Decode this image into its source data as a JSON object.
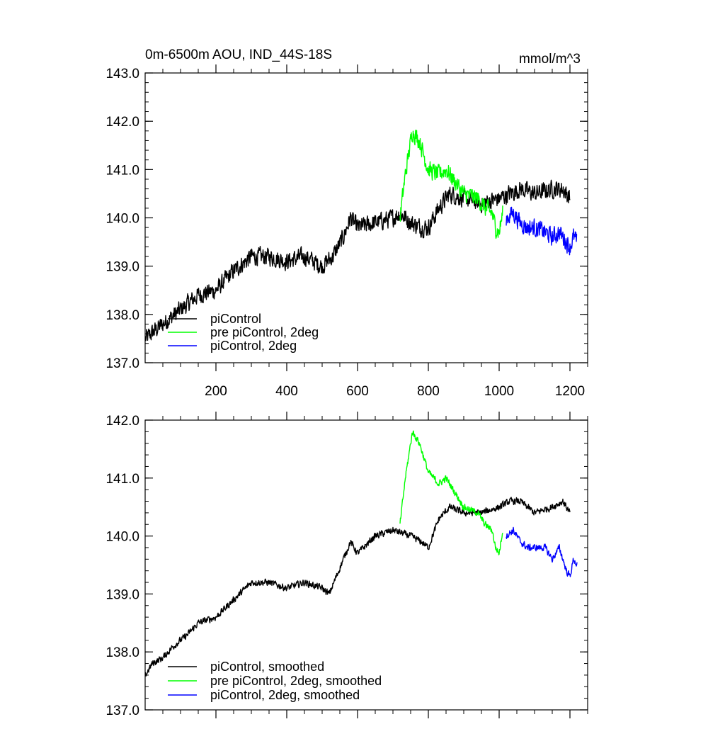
{
  "chart_data": [
    {
      "type": "line",
      "title": "0m-6500m AOU, IND_44S-18S",
      "units": "mmol/m^3",
      "xlabel": "",
      "ylabel": "",
      "xlim": [
        0,
        1250
      ],
      "ylim": [
        137.0,
        143.0
      ],
      "x_ticks": [
        200,
        400,
        600,
        800,
        1000,
        1200
      ],
      "x_tick_labels": [
        "200",
        "400",
        "600",
        "800",
        "1000",
        "1200"
      ],
      "y_ticks": [
        137.0,
        138.0,
        139.0,
        140.0,
        141.0,
        142.0,
        143.0
      ],
      "y_tick_labels": [
        "137.0",
        "138.0",
        "139.0",
        "140.0",
        "141.0",
        "142.0",
        "143.0"
      ],
      "legend_position": "bottom-left",
      "noise": 0.25,
      "series": [
        {
          "name": "piControl",
          "color": "#000000",
          "x": [
            1,
            50,
            100,
            150,
            200,
            250,
            300,
            350,
            400,
            450,
            500,
            530,
            560,
            580,
            600,
            650,
            700,
            720,
            750,
            780,
            800,
            830,
            860,
            900,
            950,
            1000,
            1030,
            1060,
            1100,
            1150,
            1180,
            1200
          ],
          "values": [
            137.5,
            137.8,
            138.1,
            138.4,
            138.5,
            138.9,
            139.2,
            139.2,
            139.1,
            139.2,
            139.0,
            139.2,
            139.6,
            140.0,
            139.8,
            139.9,
            140.0,
            140.1,
            139.9,
            139.8,
            139.8,
            140.2,
            140.5,
            140.4,
            140.3,
            140.4,
            140.5,
            140.6,
            140.5,
            140.6,
            140.6,
            140.4
          ]
        },
        {
          "name": "pre piControl, 2deg",
          "color": "#00ff00",
          "x": [
            720,
            735,
            755,
            775,
            800,
            830,
            850,
            870,
            900,
            940,
            960,
            980,
            990,
            1000,
            1010
          ],
          "values": [
            140.0,
            140.9,
            141.8,
            141.6,
            141.0,
            140.9,
            141.0,
            140.8,
            140.5,
            140.4,
            140.2,
            140.1,
            139.8,
            139.7,
            140.1
          ]
        },
        {
          "name": "piControl, 2deg",
          "color": "#0000ff",
          "x": [
            1020,
            1040,
            1060,
            1080,
            1100,
            1130,
            1150,
            1170,
            1190,
            1200,
            1210,
            1220
          ],
          "values": [
            140.0,
            140.1,
            139.9,
            139.8,
            139.8,
            139.7,
            139.6,
            139.7,
            139.5,
            139.4,
            139.6,
            139.5
          ]
        }
      ]
    },
    {
      "type": "line",
      "title": "",
      "units": "",
      "xlabel": "",
      "ylabel": "",
      "xlim": [
        0,
        1250
      ],
      "ylim": [
        137.0,
        142.0
      ],
      "x_ticks": [
        200,
        400,
        600,
        800,
        1000,
        1200
      ],
      "x_tick_labels": [],
      "y_ticks": [
        137.0,
        138.0,
        139.0,
        140.0,
        141.0,
        142.0
      ],
      "y_tick_labels": [
        "137.0",
        "138.0",
        "139.0",
        "140.0",
        "141.0",
        "142.0"
      ],
      "legend_position": "bottom-left",
      "noise": 0.08,
      "series": [
        {
          "name": "piControl, smoothed",
          "color": "#000000",
          "x": [
            1,
            20,
            50,
            80,
            120,
            150,
            200,
            250,
            300,
            350,
            400,
            450,
            500,
            520,
            540,
            560,
            580,
            600,
            650,
            700,
            750,
            780,
            800,
            830,
            860,
            900,
            950,
            1000,
            1030,
            1060,
            1100,
            1150,
            1180,
            1200
          ],
          "values": [
            137.6,
            137.8,
            137.9,
            138.1,
            138.3,
            138.5,
            138.6,
            138.9,
            139.2,
            139.2,
            139.1,
            139.2,
            139.1,
            139.0,
            139.3,
            139.6,
            139.9,
            139.7,
            140.0,
            140.1,
            140.0,
            139.9,
            139.8,
            140.3,
            140.5,
            140.4,
            140.4,
            140.5,
            140.6,
            140.6,
            140.4,
            140.5,
            140.6,
            140.4
          ]
        },
        {
          "name": "pre piControl, 2deg, smoothed",
          "color": "#00ff00",
          "x": [
            720,
            735,
            755,
            775,
            800,
            830,
            850,
            870,
            900,
            940,
            960,
            980,
            990,
            1000,
            1010
          ],
          "values": [
            140.2,
            141.0,
            141.8,
            141.6,
            141.1,
            140.9,
            141.0,
            140.8,
            140.5,
            140.4,
            140.2,
            140.1,
            139.8,
            139.7,
            140.1
          ]
        },
        {
          "name": "piControl, 2deg, smoothed",
          "color": "#0000ff",
          "x": [
            1020,
            1040,
            1060,
            1080,
            1100,
            1130,
            1150,
            1170,
            1190,
            1200,
            1210,
            1220
          ],
          "values": [
            140.0,
            140.1,
            139.9,
            139.8,
            139.8,
            139.8,
            139.6,
            139.8,
            139.4,
            139.3,
            139.6,
            139.5
          ]
        }
      ]
    }
  ]
}
